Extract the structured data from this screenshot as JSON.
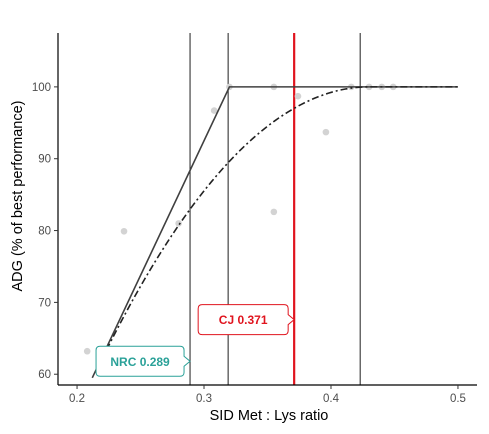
{
  "chart_data": {
    "type": "scatter",
    "xlabel": "SID Met : Lys ratio",
    "ylabel": "ADG (% of best performance)",
    "xlim": [
      0.185,
      0.515
    ],
    "ylim": [
      58.5,
      107.5
    ],
    "xticks": [
      0.2,
      0.3,
      0.4,
      0.5
    ],
    "yticks": [
      60,
      70,
      80,
      90,
      100
    ],
    "grid": false,
    "points": [
      {
        "x": 0.208,
        "y": 63.2
      },
      {
        "x": 0.237,
        "y": 79.9
      },
      {
        "x": 0.28,
        "y": 81.0
      },
      {
        "x": 0.308,
        "y": 96.7
      },
      {
        "x": 0.32,
        "y": 100.0
      },
      {
        "x": 0.355,
        "y": 100.0
      },
      {
        "x": 0.355,
        "y": 82.6
      },
      {
        "x": 0.374,
        "y": 98.7
      },
      {
        "x": 0.396,
        "y": 93.7
      },
      {
        "x": 0.416,
        "y": 100.0
      },
      {
        "x": 0.43,
        "y": 100.0
      },
      {
        "x": 0.44,
        "y": 100.0
      },
      {
        "x": 0.449,
        "y": 100.0
      }
    ],
    "broken_line": [
      {
        "x": 0.212,
        "y": 59.5
      },
      {
        "x": 0.32,
        "y": 100.0
      },
      {
        "x": 0.5,
        "y": 100.0
      }
    ],
    "curvilinear_plateau": {
      "x_start": 0.218,
      "x_break": 0.43,
      "x_end": 0.5,
      "y_start": 61.5,
      "y_plateau": 100.0
    },
    "vertical_lines": [
      {
        "x": 0.289,
        "color": "#333333"
      },
      {
        "x": 0.319,
        "color": "#333333"
      },
      {
        "x": 0.371,
        "color": "#e0141e"
      },
      {
        "x": 0.423,
        "color": "#333333"
      }
    ],
    "annotations": [
      {
        "label": "NRC 0.289",
        "x": 0.289,
        "y": 61.8,
        "color": "#2aa198"
      },
      {
        "label": "CJ 0.371",
        "x": 0.371,
        "y": 67.6,
        "color": "#e0141e"
      }
    ],
    "colors": {
      "points": "#d3d3d3",
      "lines": "#404040",
      "axis": "#000000"
    }
  }
}
